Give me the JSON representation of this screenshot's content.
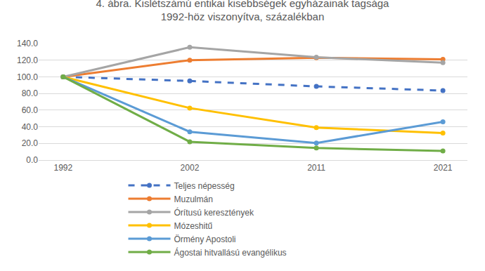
{
  "chart_data": {
    "type": "line",
    "title": "4. ábra. Kislétszámú entikai kisebbségek egyházainak tagsága 1992-höz viszonyítva, százalékban",
    "categories": [
      "1992",
      "2002",
      "2011",
      "2021"
    ],
    "ylim": [
      0,
      140
    ],
    "yticks": [
      {
        "value": 0,
        "label": "0.0"
      },
      {
        "value": 20,
        "label": "20.0"
      },
      {
        "value": 40,
        "label": "40.0"
      },
      {
        "value": 60,
        "label": "60.0"
      },
      {
        "value": 80,
        "label": "80.0"
      },
      {
        "value": 100,
        "label": "100.0"
      },
      {
        "value": 120,
        "label": "120.0"
      },
      {
        "value": 140,
        "label": "140.0"
      }
    ],
    "grid": true,
    "legend": "bottom",
    "marker": "circle",
    "series": [
      {
        "name": "Teljes népesség",
        "color": "#4472c4",
        "line_style": "dash",
        "values": [
          100,
          95,
          88.5,
          83.5
        ]
      },
      {
        "name": "Muzulmán",
        "color": "#ed7d31",
        "line_style": "solid",
        "values": [
          100,
          120,
          123,
          121
        ]
      },
      {
        "name": "Órítusú keresztények",
        "color": "#a5a5a5",
        "line_style": "solid",
        "values": [
          100,
          135.5,
          123.5,
          117
        ]
      },
      {
        "name": "Mózeshitű",
        "color": "#ffc000",
        "line_style": "solid",
        "values": [
          100,
          62.5,
          39,
          32.5
        ]
      },
      {
        "name": "Örmény Apostoli",
        "color": "#5b9bd5",
        "line_style": "solid",
        "values": [
          100,
          34,
          20.5,
          46
        ]
      },
      {
        "name": "Ágostai hitvallású evangélikus",
        "color": "#70ad47",
        "line_style": "solid",
        "values": [
          100,
          22,
          14.5,
          11
        ]
      }
    ]
  }
}
